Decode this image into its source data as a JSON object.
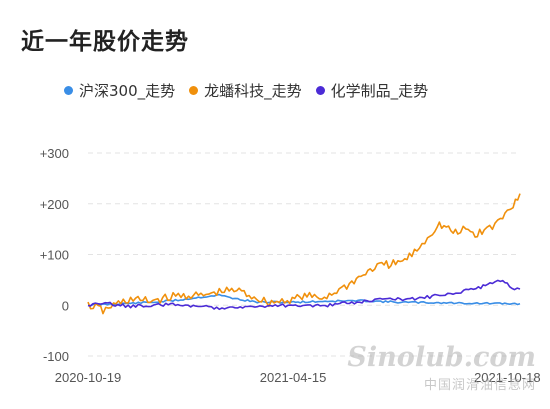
{
  "title": "近一年股价走势",
  "watermark": {
    "logo": "Sinolub.com",
    "subtitle": "中国润滑油信息网"
  },
  "chart_data": {
    "type": "line",
    "x_ticks": [
      "2020-10-19",
      "2021-04-15",
      "2021-10-18"
    ],
    "xlim": [
      "2020-10-19",
      "2021-10-29"
    ],
    "ylim": [
      -100,
      300
    ],
    "y_ticks": [
      "+300",
      "+200",
      "+100",
      "0",
      "-100"
    ],
    "grid": "horizontal-dashed",
    "legend": "top",
    "series": [
      {
        "name": "沪深300_走势",
        "color": "#3a8ee6",
        "points": [
          [
            "2020-10-19",
            0
          ],
          [
            "2020-11-05",
            2
          ],
          [
            "2020-11-25",
            4
          ],
          [
            "2020-12-15",
            6
          ],
          [
            "2021-01-05",
            10
          ],
          [
            "2021-01-25",
            16
          ],
          [
            "2021-02-10",
            20
          ],
          [
            "2021-02-26",
            12
          ],
          [
            "2021-03-15",
            6
          ],
          [
            "2021-04-15",
            6
          ],
          [
            "2021-05-15",
            8
          ],
          [
            "2021-06-15",
            9
          ],
          [
            "2021-07-15",
            6
          ],
          [
            "2021-08-15",
            5
          ],
          [
            "2021-09-15",
            4
          ],
          [
            "2021-10-18",
            3
          ],
          [
            "2021-10-29",
            3
          ]
        ]
      },
      {
        "name": "龙蟠科技_走势",
        "color": "#f0900c",
        "points": [
          [
            "2020-10-19",
            0
          ],
          [
            "2020-10-28",
            -5
          ],
          [
            "2020-11-01",
            -12
          ],
          [
            "2020-11-08",
            -2
          ],
          [
            "2020-11-25",
            12
          ],
          [
            "2020-12-10",
            8
          ],
          [
            "2020-12-25",
            14
          ],
          [
            "2021-01-10",
            20
          ],
          [
            "2021-01-25",
            18
          ],
          [
            "2021-02-10",
            26
          ],
          [
            "2021-02-25",
            30
          ],
          [
            "2021-03-10",
            18
          ],
          [
            "2021-03-25",
            5
          ],
          [
            "2021-04-10",
            10
          ],
          [
            "2021-04-25",
            18
          ],
          [
            "2021-05-10",
            14
          ],
          [
            "2021-05-25",
            30
          ],
          [
            "2021-06-05",
            45
          ],
          [
            "2021-06-15",
            60
          ],
          [
            "2021-06-25",
            75
          ],
          [
            "2021-07-05",
            80
          ],
          [
            "2021-07-15",
            82
          ],
          [
            "2021-07-25",
            95
          ],
          [
            "2021-08-05",
            120
          ],
          [
            "2021-08-12",
            140
          ],
          [
            "2021-08-20",
            160
          ],
          [
            "2021-08-28",
            150
          ],
          [
            "2021-09-05",
            140
          ],
          [
            "2021-09-12",
            152
          ],
          [
            "2021-09-20",
            138
          ],
          [
            "2021-09-28",
            148
          ],
          [
            "2021-10-05",
            155
          ],
          [
            "2021-10-12",
            168
          ],
          [
            "2021-10-18",
            185
          ],
          [
            "2021-10-23",
            200
          ],
          [
            "2021-10-29",
            220
          ]
        ]
      },
      {
        "name": "化学制品_走势",
        "color": "#4b2bd6",
        "points": [
          [
            "2020-10-19",
            0
          ],
          [
            "2020-11-05",
            3
          ],
          [
            "2020-11-25",
            -2
          ],
          [
            "2020-12-15",
            0
          ],
          [
            "2021-01-05",
            2
          ],
          [
            "2021-01-25",
            -3
          ],
          [
            "2021-02-10",
            -5
          ],
          [
            "2021-02-26",
            -2
          ],
          [
            "2021-03-15",
            -3
          ],
          [
            "2021-04-15",
            0
          ],
          [
            "2021-05-15",
            0
          ],
          [
            "2021-06-05",
            5
          ],
          [
            "2021-06-25",
            10
          ],
          [
            "2021-07-15",
            12
          ],
          [
            "2021-08-05",
            14
          ],
          [
            "2021-08-25",
            22
          ],
          [
            "2021-09-10",
            28
          ],
          [
            "2021-09-25",
            36
          ],
          [
            "2021-10-05",
            44
          ],
          [
            "2021-10-12",
            50
          ],
          [
            "2021-10-18",
            46
          ],
          [
            "2021-10-22",
            33
          ],
          [
            "2021-10-29",
            32
          ]
        ]
      }
    ]
  }
}
